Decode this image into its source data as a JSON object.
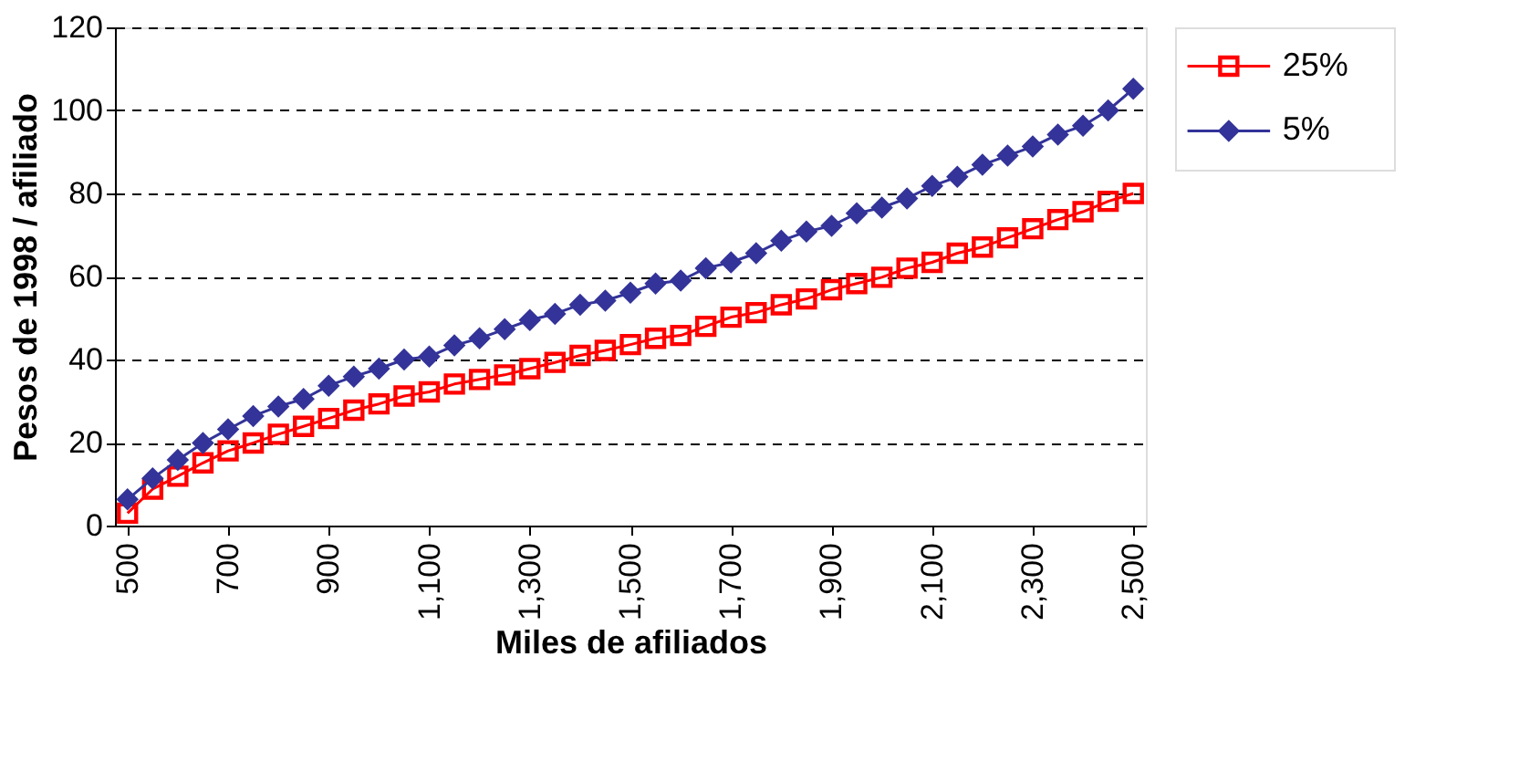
{
  "chart_data": {
    "type": "line",
    "xlabel": "Miles de afiliados",
    "ylabel": "Pesos de 1998 / afiliado",
    "x": [
      500,
      550,
      600,
      650,
      700,
      750,
      800,
      850,
      900,
      950,
      1000,
      1050,
      1100,
      1150,
      1200,
      1250,
      1300,
      1350,
      1400,
      1450,
      1500,
      1550,
      1600,
      1650,
      1700,
      1750,
      1800,
      1850,
      1900,
      1950,
      2000,
      2050,
      2100,
      2150,
      2200,
      2250,
      2300,
      2350,
      2400,
      2450,
      2500
    ],
    "series": [
      {
        "name": "25%",
        "color": "#ff0000",
        "marker": "square",
        "values": [
          3,
          8.8,
          11.9,
          15.1,
          18,
          19.9,
          22,
          23.9,
          25.8,
          27.8,
          29.3,
          31.2,
          32.2,
          34.1,
          35.2,
          36.3,
          37.8,
          39.3,
          41,
          42.2,
          43.6,
          45.1,
          45.8,
          48,
          50.2,
          51.3,
          53.2,
          54.6,
          56.8,
          58.3,
          59.8,
          62,
          63.4,
          65.6,
          67.1,
          69.3,
          71.5,
          73.7,
          75.6,
          78.1,
          80
        ]
      },
      {
        "name": "5%",
        "color": "#333399",
        "marker": "diamond",
        "values": [
          6.3,
          11.4,
          15.8,
          19.9,
          23.2,
          26.4,
          28.7,
          30.5,
          33.7,
          35.9,
          37.8,
          40,
          40.7,
          43.4,
          45.1,
          47.3,
          49.5,
          51,
          53.2,
          54.2,
          56.1,
          58.3,
          59,
          62,
          63.4,
          65.6,
          68.6,
          70.8,
          72.2,
          75.2,
          76.6,
          78.8,
          81.8,
          84,
          86.9,
          89.1,
          91.3,
          94.2,
          96.3,
          100,
          105.2
        ]
      }
    ],
    "xlim": [
      475,
      2525
    ],
    "xticks": [
      500,
      700,
      900,
      {
        "value": 1100,
        "label": "1,100"
      },
      {
        "value": 1300,
        "label": "1,300"
      },
      {
        "value": 1500,
        "label": "1,500"
      },
      {
        "value": 1700,
        "label": "1,700"
      },
      {
        "value": 1900,
        "label": "1,900"
      },
      {
        "value": 2100,
        "label": "2,100"
      },
      {
        "value": 2300,
        "label": "2,300"
      },
      {
        "value": 2500,
        "label": "2,500"
      }
    ],
    "ylim": [
      0,
      120
    ],
    "yticks": [
      0,
      20,
      40,
      60,
      80,
      100,
      120
    ],
    "grid": "y",
    "legend": "right",
    "line_style": "solid"
  }
}
